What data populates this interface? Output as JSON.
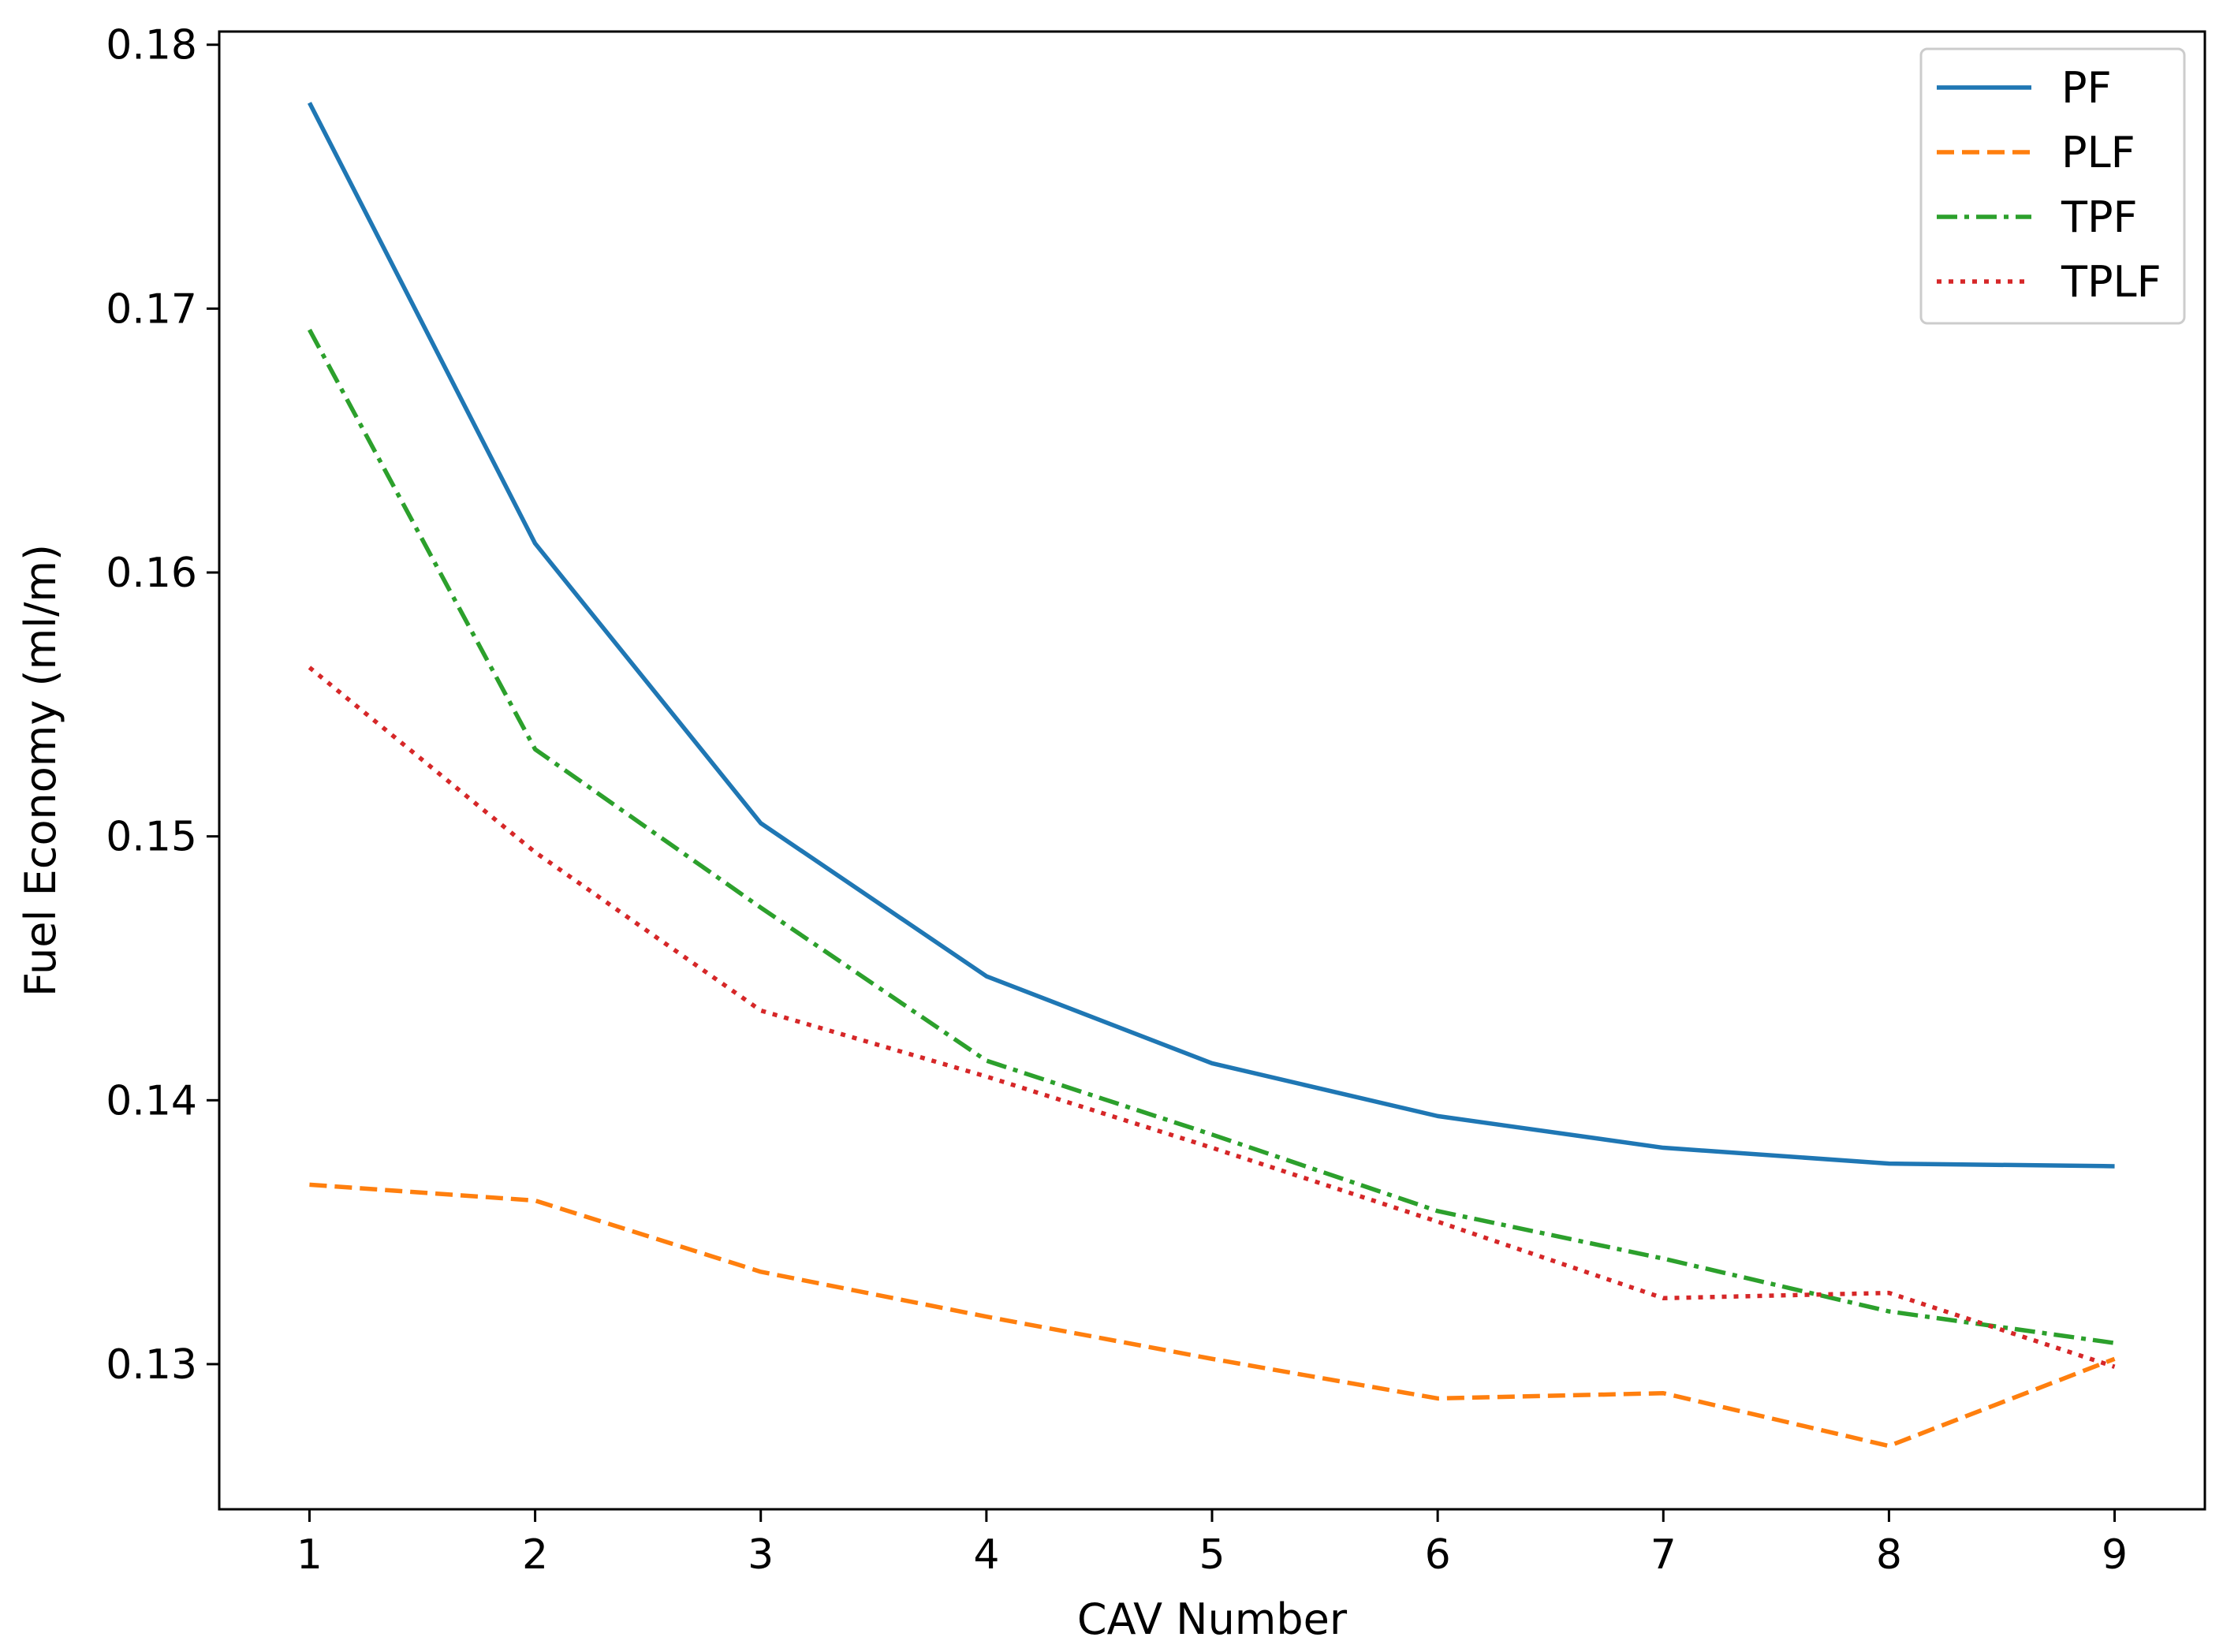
{
  "chart_data": {
    "type": "line",
    "title": "",
    "xlabel": "CAV Number",
    "ylabel": "Fuel Economy (ml/m)",
    "x": [
      1,
      2,
      3,
      4,
      5,
      6,
      7,
      8,
      9
    ],
    "xlim": [
      0.6,
      9.4
    ],
    "ylim": [
      0.1245,
      0.1805
    ],
    "xticks": [
      1,
      2,
      3,
      4,
      5,
      6,
      7,
      8,
      9
    ],
    "yticks": [
      0.13,
      0.14,
      0.15,
      0.16,
      0.17,
      0.18
    ],
    "ytick_labels": [
      "0.13",
      "0.14",
      "0.15",
      "0.16",
      "0.17",
      "0.18"
    ],
    "grid": false,
    "legend_position": "top-right",
    "series": [
      {
        "name": "PF",
        "style": "solid",
        "color": "#1f77b4",
        "values": [
          0.1778,
          0.1611,
          0.1505,
          0.1447,
          0.1414,
          0.1394,
          0.1382,
          0.1376,
          0.1375
        ]
      },
      {
        "name": "PLF",
        "style": "dashed",
        "color": "#ff7f0e",
        "values": [
          0.1368,
          0.1362,
          0.1335,
          0.1318,
          0.1302,
          0.1287,
          0.1289,
          0.1269,
          0.1302
        ]
      },
      {
        "name": "TPF",
        "style": "dashdot",
        "color": "#2ca02c",
        "values": [
          0.1692,
          0.1533,
          0.1473,
          0.1415,
          0.1387,
          0.1358,
          0.134,
          0.132,
          0.1308
        ]
      },
      {
        "name": "TPLF",
        "style": "dotted",
        "color": "#d62728",
        "values": [
          0.1564,
          0.1494,
          0.1434,
          0.1409,
          0.1382,
          0.1354,
          0.1325,
          0.1327,
          0.1299
        ]
      }
    ]
  }
}
